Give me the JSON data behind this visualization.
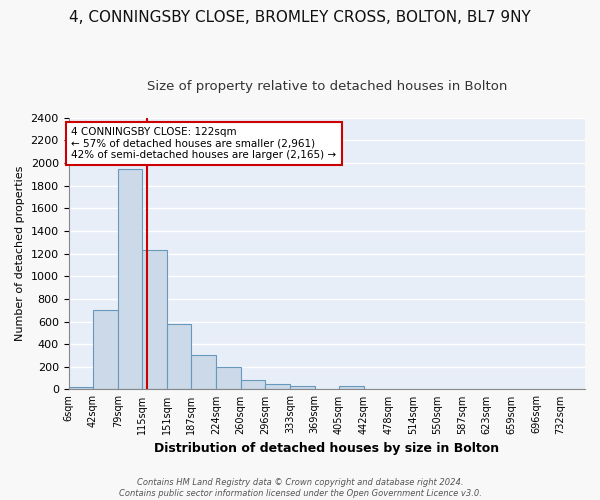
{
  "title": "4, CONNINGSBY CLOSE, BROMLEY CROSS, BOLTON, BL7 9NY",
  "subtitle": "Size of property relative to detached houses in Bolton",
  "xlabel": "Distribution of detached houses by size in Bolton",
  "ylabel": "Number of detached properties",
  "bin_labels": [
    "6sqm",
    "42sqm",
    "79sqm",
    "115sqm",
    "151sqm",
    "187sqm",
    "224sqm",
    "260sqm",
    "296sqm",
    "333sqm",
    "369sqm",
    "405sqm",
    "442sqm",
    "478sqm",
    "514sqm",
    "550sqm",
    "587sqm",
    "623sqm",
    "659sqm",
    "696sqm",
    "732sqm"
  ],
  "bin_edges": [
    6,
    42,
    79,
    115,
    151,
    187,
    224,
    260,
    296,
    333,
    369,
    405,
    442,
    478,
    514,
    550,
    587,
    623,
    659,
    696,
    732,
    768
  ],
  "bar_heights": [
    25,
    700,
    1950,
    1230,
    580,
    300,
    200,
    80,
    50,
    30,
    0,
    30,
    0,
    0,
    0,
    0,
    0,
    0,
    0,
    0,
    0
  ],
  "bar_color": "#ccd9e8",
  "bar_edge_color": "#6699bb",
  "property_size": 122,
  "vline_color": "#cc0000",
  "annotation_text": "4 CONNINGSBY CLOSE: 122sqm\n← 57% of detached houses are smaller (2,961)\n42% of semi-detached houses are larger (2,165) →",
  "annotation_box_color": "#ffffff",
  "annotation_box_edge": "#cc0000",
  "ylim": [
    0,
    2400
  ],
  "yticks": [
    0,
    200,
    400,
    600,
    800,
    1000,
    1200,
    1400,
    1600,
    1800,
    2000,
    2200,
    2400
  ],
  "footer_text": "Contains HM Land Registry data © Crown copyright and database right 2024.\nContains public sector information licensed under the Open Government Licence v3.0.",
  "plot_bg_color": "#e8eef8",
  "fig_bg_color": "#f8f8f8",
  "grid_color": "#ffffff",
  "title_fontsize": 11,
  "subtitle_fontsize": 9.5
}
